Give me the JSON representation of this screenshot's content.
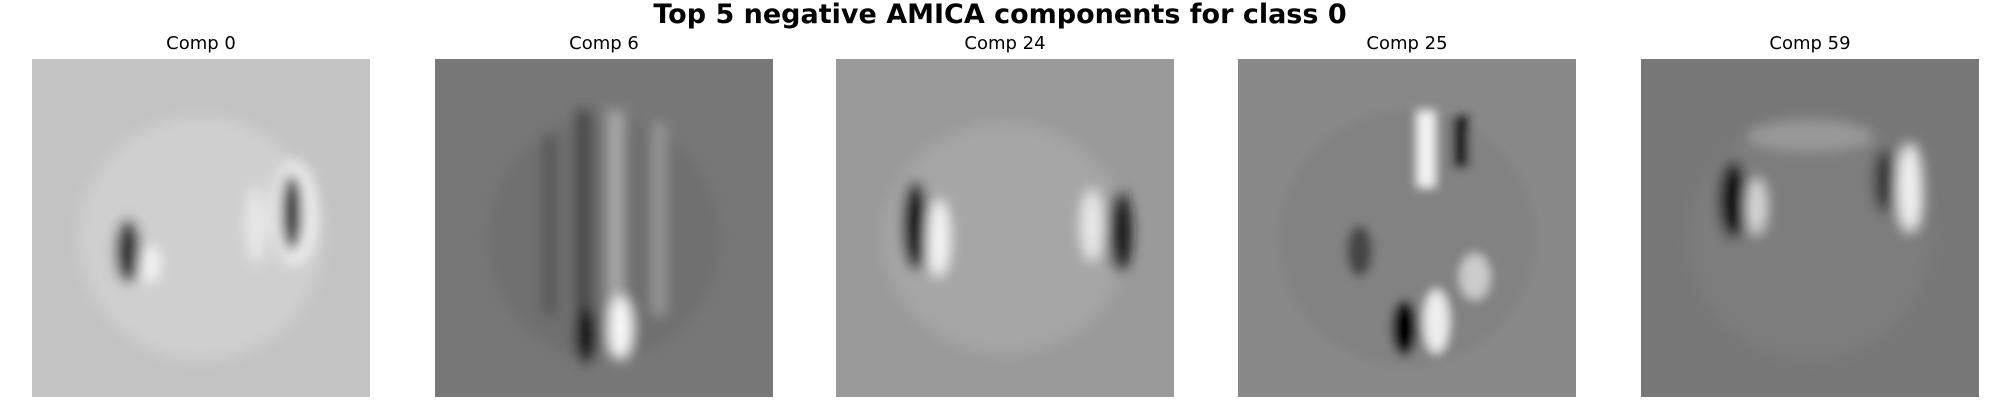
{
  "header": {
    "title": "Top 5 negative AMICA components for class 0"
  },
  "panels": [
    {
      "title": "Comp 0"
    },
    {
      "title": "Comp 6"
    },
    {
      "title": "Comp 24"
    },
    {
      "title": "Comp 25"
    },
    {
      "title": "Comp 59"
    }
  ]
}
